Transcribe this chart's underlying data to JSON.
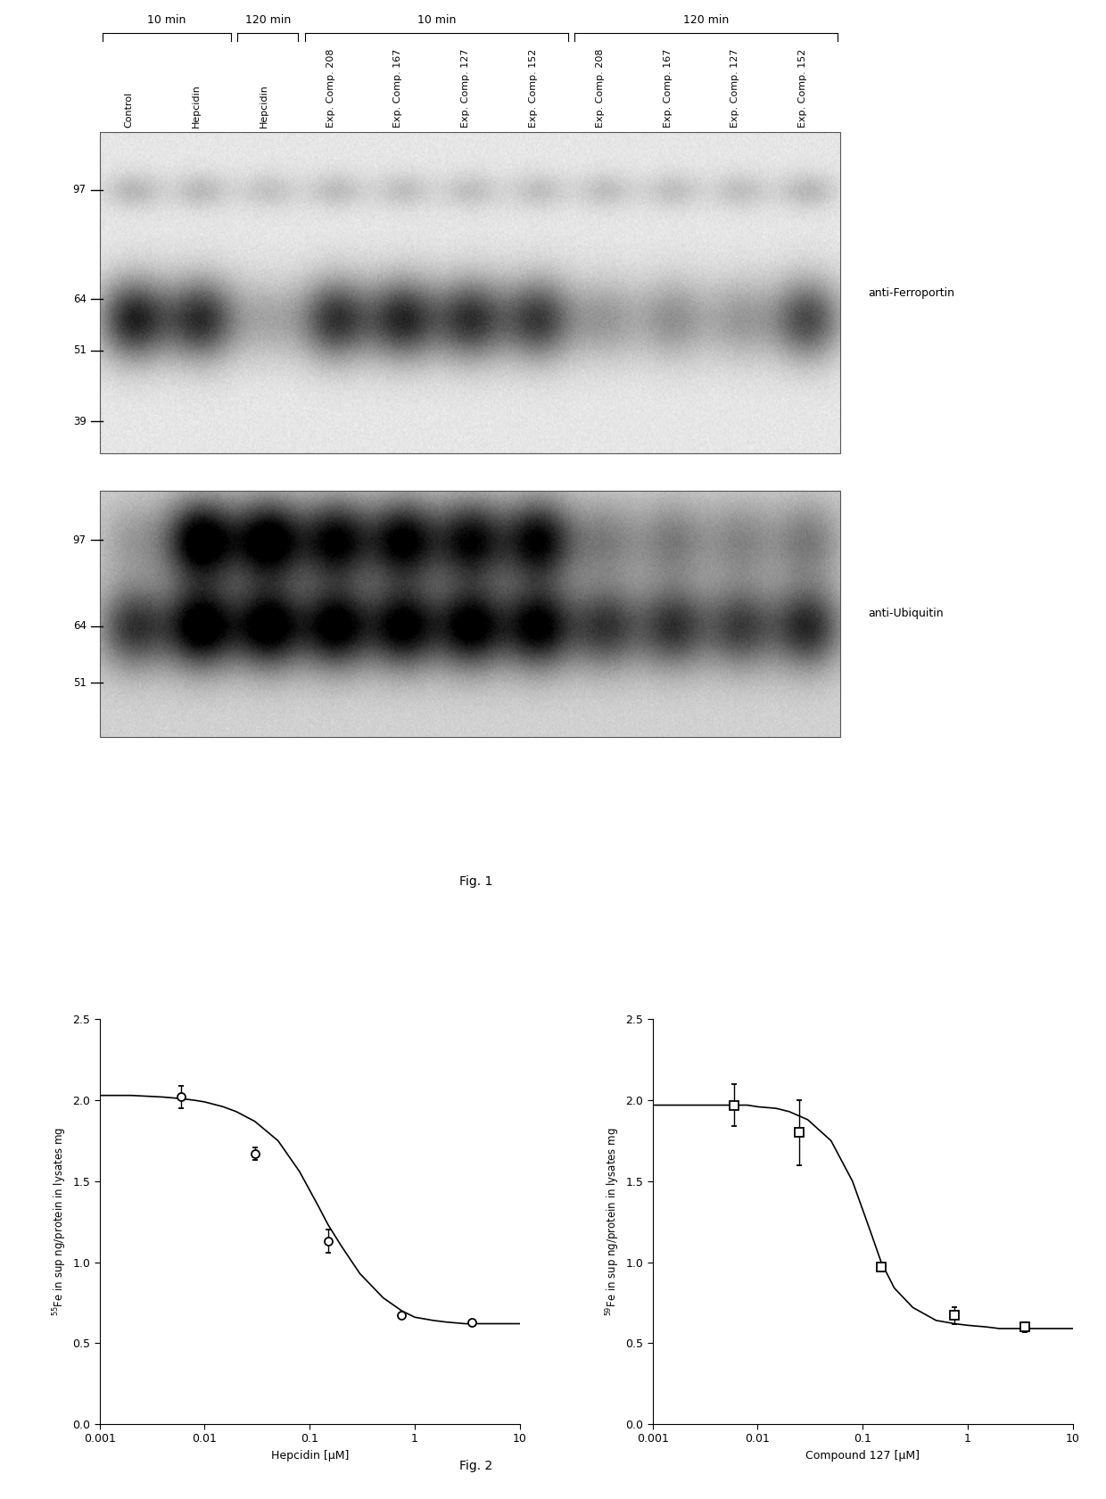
{
  "fig1": {
    "lanes": [
      "Control",
      "Hepcidin",
      "Hepcidin",
      "Exp. Comp. 208",
      "Exp. Comp. 167",
      "Exp. Comp. 127",
      "Exp. Comp. 152",
      "Exp. Comp. 208",
      "Exp. Comp. 167",
      "Exp. Comp. 127",
      "Exp. Comp. 152"
    ],
    "mw_markers_ferroportin": [
      97,
      64,
      51,
      39
    ],
    "mw_markers_ubiquitin": [
      97,
      64,
      51
    ],
    "label_ferroportin": "anti-Ferroportin",
    "label_ubiquitin": "anti-Ubiquitin",
    "fig_caption": "Fig. 1",
    "ferr_main_intensities": [
      0.75,
      0.7,
      0.22,
      0.68,
      0.72,
      0.68,
      0.65,
      0.28,
      0.32,
      0.28,
      0.6
    ],
    "ferr_high_intensities": [
      0.18,
      0.17,
      0.14,
      0.16,
      0.15,
      0.15,
      0.15,
      0.15,
      0.15,
      0.15,
      0.18
    ],
    "ubiq_main_intensities": [
      0.6,
      0.9,
      0.88,
      0.85,
      0.83,
      0.85,
      0.83,
      0.58,
      0.6,
      0.55,
      0.65
    ],
    "ubiq_high_intensities": [
      0.2,
      0.92,
      0.9,
      0.8,
      0.82,
      0.77,
      0.8,
      0.3,
      0.32,
      0.28,
      0.33
    ]
  },
  "fig2_left": {
    "x": [
      0.006,
      0.03,
      0.15,
      0.75,
      3.5
    ],
    "y": [
      2.02,
      1.67,
      1.13,
      0.67,
      0.63
    ],
    "yerr": [
      0.07,
      0.04,
      0.07,
      0.0,
      0.0
    ],
    "xlabel": "Hepcidin [μM]",
    "xlim": [
      0.001,
      10
    ],
    "ylim": [
      0.0,
      2.5
    ],
    "yticks": [
      0.0,
      0.5,
      1.0,
      1.5,
      2.0,
      2.5
    ],
    "xticks": [
      0.001,
      0.01,
      0.1,
      1,
      10
    ],
    "marker": "o",
    "curve_x": [
      0.001,
      0.002,
      0.004,
      0.006,
      0.008,
      0.01,
      0.015,
      0.02,
      0.03,
      0.05,
      0.08,
      0.12,
      0.15,
      0.2,
      0.3,
      0.5,
      0.75,
      1.0,
      1.5,
      2.0,
      3.0,
      5.0,
      7.0,
      10.0
    ],
    "curve_y": [
      2.03,
      2.03,
      2.02,
      2.01,
      2.0,
      1.99,
      1.96,
      1.93,
      1.87,
      1.75,
      1.56,
      1.35,
      1.23,
      1.1,
      0.93,
      0.78,
      0.7,
      0.66,
      0.64,
      0.63,
      0.62,
      0.62,
      0.62,
      0.62
    ]
  },
  "fig2_right": {
    "x": [
      0.006,
      0.025,
      0.15,
      0.75,
      3.5
    ],
    "y": [
      1.97,
      1.8,
      0.97,
      0.67,
      0.6
    ],
    "yerr": [
      0.13,
      0.2,
      0.03,
      0.05,
      0.03
    ],
    "xlabel": "Compound 127 [μM]",
    "xlim": [
      0.001,
      10
    ],
    "ylim": [
      0.0,
      2.5
    ],
    "yticks": [
      0.0,
      0.5,
      1.0,
      1.5,
      2.0,
      2.5
    ],
    "xticks": [
      0.001,
      0.01,
      0.1,
      1,
      10
    ],
    "marker": "s",
    "curve_x": [
      0.001,
      0.002,
      0.004,
      0.006,
      0.008,
      0.01,
      0.015,
      0.02,
      0.03,
      0.05,
      0.08,
      0.12,
      0.15,
      0.2,
      0.3,
      0.5,
      0.75,
      1.0,
      1.5,
      2.0,
      3.0,
      5.0,
      7.0,
      10.0
    ],
    "curve_y": [
      1.97,
      1.97,
      1.97,
      1.97,
      1.97,
      1.96,
      1.95,
      1.93,
      1.88,
      1.75,
      1.5,
      1.18,
      1.0,
      0.84,
      0.72,
      0.64,
      0.62,
      0.61,
      0.6,
      0.59,
      0.59,
      0.59,
      0.59,
      0.59
    ]
  },
  "fig2_caption": "Fig. 2",
  "background_color": "#ffffff"
}
